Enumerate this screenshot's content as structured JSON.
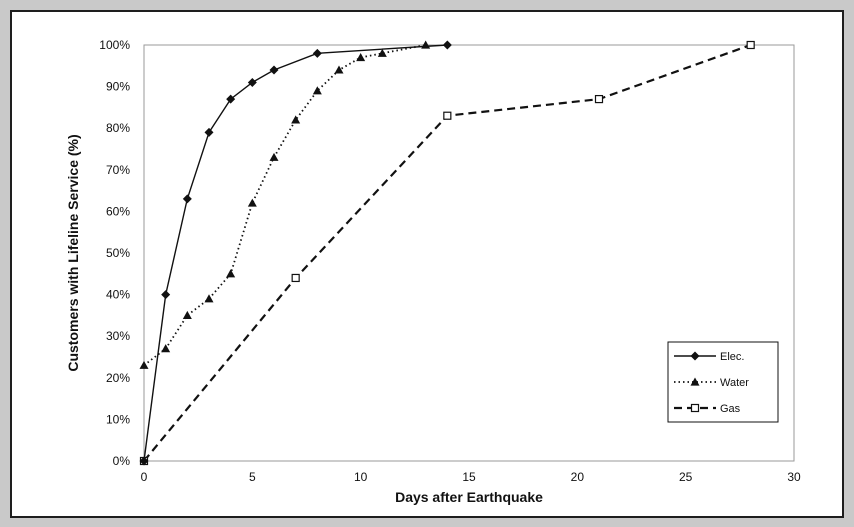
{
  "chart_data": {
    "type": "line",
    "title": "",
    "xlabel": "Days after Earthquake",
    "ylabel": "Customers with Lifeline Service (%)",
    "xlim": [
      0,
      30
    ],
    "ylim": [
      0,
      100
    ],
    "x_ticks": [
      "0",
      "5",
      "10",
      "15",
      "20",
      "25",
      "30"
    ],
    "y_ticks": [
      "0%",
      "10%",
      "20%",
      "30%",
      "40%",
      "50%",
      "60%",
      "70%",
      "80%",
      "90%",
      "100%"
    ],
    "grid": false,
    "legend_position": "bottom-right",
    "series": [
      {
        "name": "Elec.",
        "marker": "diamond-filled",
        "line_style": "solid",
        "x": [
          0,
          1,
          2,
          3,
          4,
          5,
          6,
          8,
          14
        ],
        "y": [
          0,
          40,
          63,
          79,
          87,
          91,
          94,
          98,
          100
        ]
      },
      {
        "name": "Water",
        "marker": "triangle-filled",
        "line_style": "dotted",
        "x": [
          0,
          1,
          2,
          3,
          4,
          5,
          6,
          7,
          8,
          9,
          10,
          11,
          13
        ],
        "y": [
          23,
          27,
          35,
          39,
          45,
          62,
          73,
          82,
          89,
          94,
          97,
          98,
          100
        ]
      },
      {
        "name": "Gas",
        "marker": "square-open",
        "line_style": "dashed",
        "x": [
          0,
          7,
          14,
          21,
          28
        ],
        "y": [
          0,
          44,
          83,
          87,
          100
        ]
      }
    ]
  }
}
